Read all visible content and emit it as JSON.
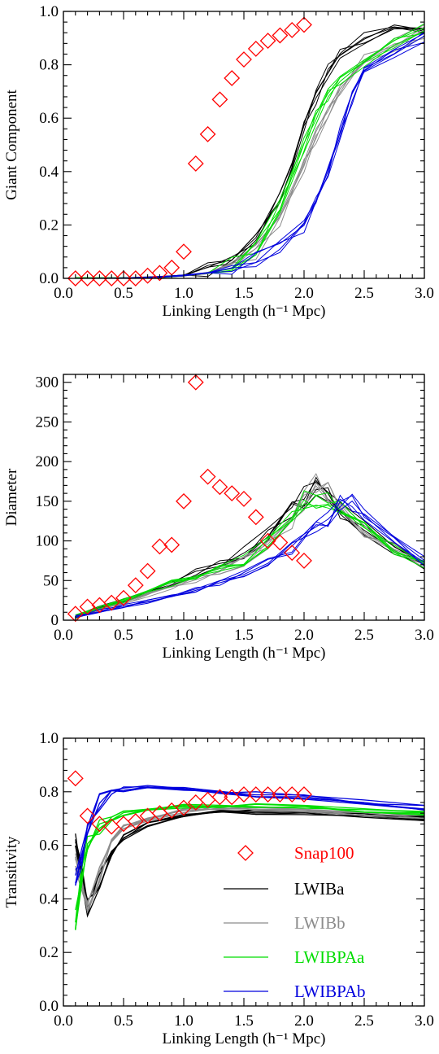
{
  "colors": {
    "snap100": "#ff0000",
    "LWIBa": "#000000",
    "LWIBb": "#8c8c8c",
    "LWIBPAa": "#00dd00",
    "LWIBPAb": "#0000dd"
  },
  "legend": {
    "entries": [
      {
        "label": "Snap100",
        "color": "#ff0000",
        "marker": "diamond"
      },
      {
        "label": "LWIBa",
        "color": "#000000",
        "marker": "line"
      },
      {
        "label": "LWIBb",
        "color": "#8c8c8c",
        "marker": "line"
      },
      {
        "label": "LWIBPAa",
        "color": "#00dd00",
        "marker": "line"
      },
      {
        "label": "LWIBPAb",
        "color": "#0000dd",
        "marker": "line"
      }
    ]
  },
  "chart_data": [
    {
      "type": "scatter",
      "ylabel": "Giant Component",
      "xlabel": "Linking Length (h⁻¹ Mpc)",
      "xlim": [
        0,
        3
      ],
      "ylim": [
        0,
        1
      ],
      "xticks": [
        "0.0",
        "0.5",
        "1.0",
        "1.5",
        "2.0",
        "2.5",
        "3.0"
      ],
      "yticks": [
        "0.0",
        "0.2",
        "0.4",
        "0.6",
        "0.8",
        "1.0"
      ],
      "snap100": {
        "x": [
          0.1,
          0.2,
          0.3,
          0.4,
          0.5,
          0.6,
          0.7,
          0.8,
          0.9,
          1.0,
          1.1,
          1.2,
          1.3,
          1.4,
          1.5,
          1.6,
          1.7,
          1.8,
          1.9,
          2.0
        ],
        "y": [
          0.0,
          0.0,
          0.0,
          0.0,
          0.0,
          0.0,
          0.01,
          0.02,
          0.04,
          0.1,
          0.43,
          0.54,
          0.67,
          0.75,
          0.82,
          0.86,
          0.89,
          0.91,
          0.93,
          0.95
        ]
      },
      "series": [
        {
          "name": "LWIBa",
          "color": "#000000",
          "runs": 5,
          "x": [
            0.1,
            0.5,
            0.8,
            1.0,
            1.2,
            1.4,
            1.6,
            1.8,
            1.9,
            2.0,
            2.1,
            2.2,
            2.3,
            2.5,
            2.75,
            3.0
          ],
          "y": [
            0.0,
            0.0,
            0.005,
            0.01,
            0.03,
            0.07,
            0.15,
            0.3,
            0.42,
            0.56,
            0.68,
            0.78,
            0.84,
            0.9,
            0.93,
            0.95
          ]
        },
        {
          "name": "LWIBb",
          "color": "#8c8c8c",
          "runs": 5,
          "x": [
            0.1,
            0.5,
            0.8,
            1.0,
            1.2,
            1.4,
            1.6,
            1.8,
            2.0,
            2.1,
            2.2,
            2.3,
            2.5,
            2.75,
            3.0
          ],
          "y": [
            0.0,
            0.0,
            0.005,
            0.01,
            0.02,
            0.05,
            0.1,
            0.22,
            0.42,
            0.53,
            0.62,
            0.7,
            0.82,
            0.88,
            0.92
          ]
        },
        {
          "name": "LWIBPAa",
          "color": "#00dd00",
          "runs": 5,
          "x": [
            0.1,
            0.5,
            0.8,
            1.0,
            1.2,
            1.4,
            1.6,
            1.8,
            2.0,
            2.1,
            2.2,
            2.3,
            2.5,
            2.75,
            3.0
          ],
          "y": [
            0.0,
            0.0,
            0.005,
            0.01,
            0.02,
            0.05,
            0.11,
            0.27,
            0.5,
            0.6,
            0.68,
            0.74,
            0.82,
            0.88,
            0.93
          ]
        },
        {
          "name": "LWIBPAb",
          "color": "#0000dd",
          "runs": 5,
          "x": [
            0.1,
            0.5,
            0.8,
            1.0,
            1.2,
            1.4,
            1.6,
            1.8,
            2.0,
            2.1,
            2.2,
            2.3,
            2.4,
            2.5,
            2.75,
            3.0
          ],
          "y": [
            0.0,
            0.0,
            0.005,
            0.01,
            0.02,
            0.04,
            0.07,
            0.12,
            0.2,
            0.28,
            0.4,
            0.55,
            0.68,
            0.76,
            0.84,
            0.9
          ]
        }
      ]
    },
    {
      "type": "scatter",
      "ylabel": "Diameter",
      "xlabel": "Linking Length (h⁻¹ Mpc)",
      "xlim": [
        0,
        3
      ],
      "ylim": [
        0,
        310
      ],
      "xticks": [
        "0.0",
        "0.5",
        "1.0",
        "1.5",
        "2.0",
        "2.5",
        "3.0"
      ],
      "yticks": [
        "0",
        "50",
        "100",
        "150",
        "200",
        "250",
        "300"
      ],
      "snap100": {
        "x": [
          0.1,
          0.2,
          0.3,
          0.4,
          0.5,
          0.6,
          0.7,
          0.8,
          0.9,
          1.0,
          1.1,
          1.2,
          1.3,
          1.4,
          1.5,
          1.6,
          1.7,
          1.8,
          1.9,
          2.0
        ],
        "y": [
          8,
          17,
          19,
          22,
          28,
          44,
          62,
          93,
          95,
          150,
          300,
          181,
          168,
          160,
          153,
          130,
          100,
          98,
          85,
          75
        ]
      },
      "series": [
        {
          "name": "LWIBa",
          "color": "#000000",
          "runs": 5,
          "x": [
            0.1,
            0.3,
            0.5,
            0.7,
            0.9,
            1.1,
            1.3,
            1.5,
            1.7,
            1.9,
            2.0,
            2.1,
            2.2,
            2.3,
            2.5,
            2.75,
            3.0
          ],
          "y": [
            5,
            15,
            25,
            35,
            45,
            60,
            72,
            85,
            110,
            140,
            155,
            165,
            155,
            140,
            115,
            90,
            70
          ]
        },
        {
          "name": "LWIBb",
          "color": "#8c8c8c",
          "runs": 5,
          "x": [
            0.1,
            0.3,
            0.5,
            0.7,
            0.9,
            1.1,
            1.3,
            1.5,
            1.7,
            1.9,
            2.0,
            2.1,
            2.2,
            2.3,
            2.5,
            2.75,
            3.0
          ],
          "y": [
            5,
            13,
            22,
            32,
            42,
            52,
            62,
            75,
            95,
            120,
            150,
            170,
            160,
            145,
            115,
            90,
            70
          ]
        },
        {
          "name": "LWIBPAa",
          "color": "#00dd00",
          "runs": 5,
          "x": [
            0.1,
            0.3,
            0.5,
            0.7,
            0.9,
            1.1,
            1.3,
            1.5,
            1.7,
            1.9,
            2.0,
            2.1,
            2.2,
            2.3,
            2.5,
            2.75,
            3.0
          ],
          "y": [
            5,
            15,
            25,
            35,
            47,
            57,
            64,
            75,
            100,
            130,
            150,
            155,
            150,
            140,
            115,
            90,
            70
          ]
        },
        {
          "name": "LWIBPAb",
          "color": "#0000dd",
          "runs": 5,
          "x": [
            0.1,
            0.3,
            0.5,
            0.7,
            0.9,
            1.1,
            1.3,
            1.5,
            1.7,
            1.9,
            2.0,
            2.1,
            2.2,
            2.3,
            2.4,
            2.5,
            2.75,
            3.0
          ],
          "y": [
            5,
            11,
            17,
            23,
            30,
            38,
            48,
            58,
            72,
            90,
            100,
            115,
            130,
            145,
            148,
            130,
            100,
            75
          ]
        }
      ]
    },
    {
      "type": "scatter",
      "ylabel": "Transitivity",
      "xlabel": "Linking Length (h⁻¹ Mpc)",
      "xlim": [
        0,
        3
      ],
      "ylim": [
        0,
        1
      ],
      "xticks": [
        "0.0",
        "0.5",
        "1.0",
        "1.5",
        "2.0",
        "2.5",
        "3.0"
      ],
      "yticks": [
        "0.0",
        "0.2",
        "0.4",
        "0.6",
        "0.8",
        "1.0"
      ],
      "legend_position": "bottom-right",
      "snap100": {
        "x": [
          0.1,
          0.2,
          0.3,
          0.4,
          0.5,
          0.6,
          0.7,
          0.8,
          0.9,
          1.0,
          1.1,
          1.2,
          1.3,
          1.4,
          1.5,
          1.6,
          1.7,
          1.8,
          1.9,
          2.0
        ],
        "y": [
          0.85,
          0.71,
          0.68,
          0.67,
          0.68,
          0.69,
          0.71,
          0.72,
          0.73,
          0.74,
          0.76,
          0.77,
          0.78,
          0.78,
          0.79,
          0.79,
          0.79,
          0.79,
          0.79,
          0.79
        ]
      },
      "series": [
        {
          "name": "LWIBa",
          "color": "#000000",
          "runs": 5,
          "x": [
            0.1,
            0.15,
            0.2,
            0.3,
            0.4,
            0.5,
            0.7,
            1.0,
            1.3,
            1.6,
            2.0,
            2.5,
            3.0
          ],
          "y": [
            0.62,
            0.5,
            0.37,
            0.47,
            0.57,
            0.63,
            0.68,
            0.71,
            0.725,
            0.725,
            0.72,
            0.71,
            0.7
          ]
        },
        {
          "name": "LWIBb",
          "color": "#8c8c8c",
          "runs": 5,
          "x": [
            0.1,
            0.15,
            0.2,
            0.3,
            0.4,
            0.5,
            0.7,
            1.0,
            1.3,
            1.6,
            2.0,
            2.5,
            3.0
          ],
          "y": [
            0.55,
            0.45,
            0.35,
            0.5,
            0.62,
            0.67,
            0.7,
            0.73,
            0.74,
            0.74,
            0.73,
            0.72,
            0.71
          ]
        },
        {
          "name": "LWIBPAa",
          "color": "#00dd00",
          "runs": 5,
          "x": [
            0.1,
            0.15,
            0.2,
            0.3,
            0.4,
            0.5,
            0.7,
            1.0,
            1.3,
            1.6,
            2.0,
            2.5,
            3.0
          ],
          "y": [
            0.32,
            0.48,
            0.6,
            0.66,
            0.7,
            0.72,
            0.735,
            0.745,
            0.75,
            0.75,
            0.74,
            0.73,
            0.72
          ]
        },
        {
          "name": "LWIBPAb",
          "color": "#0000dd",
          "runs": 5,
          "x": [
            0.1,
            0.15,
            0.2,
            0.3,
            0.4,
            0.5,
            0.7,
            1.0,
            1.3,
            1.6,
            2.0,
            2.5,
            3.0
          ],
          "y": [
            0.48,
            0.55,
            0.65,
            0.77,
            0.8,
            0.81,
            0.815,
            0.81,
            0.8,
            0.79,
            0.78,
            0.76,
            0.74
          ]
        }
      ]
    }
  ]
}
